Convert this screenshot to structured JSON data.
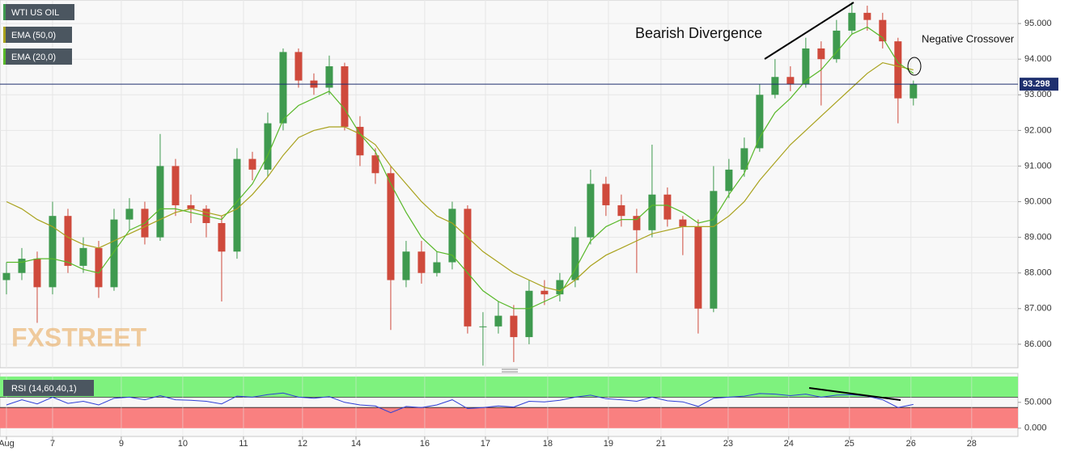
{
  "chart_data": [
    {
      "type": "candlestick",
      "instrument": "WTI US OIL",
      "x": [
        0,
        1,
        2,
        3,
        4,
        5,
        6,
        7,
        8,
        9,
        10,
        11,
        12,
        13,
        14,
        15,
        16,
        17,
        18,
        19,
        20,
        21,
        22,
        23,
        24,
        25,
        26,
        27,
        28,
        29,
        30,
        31,
        32,
        33,
        34,
        35,
        36,
        37,
        38,
        39,
        40,
        41,
        42,
        43,
        44,
        45,
        46,
        47,
        48,
        49,
        50,
        51,
        52,
        53,
        54,
        55,
        56,
        57,
        58,
        59
      ],
      "open": [
        87.8,
        88.0,
        88.4,
        87.6,
        89.6,
        88.2,
        88.7,
        87.6,
        89.5,
        89.8,
        89.0,
        91.0,
        89.9,
        89.8,
        89.4,
        88.6,
        91.2,
        90.9,
        92.2,
        94.2,
        93.4,
        93.2,
        93.8,
        92.1,
        91.3,
        90.8,
        87.8,
        88.6,
        88.0,
        88.3,
        89.8,
        86.5,
        86.5,
        86.8,
        86.2,
        87.5,
        87.4,
        87.8,
        89.0,
        90.5,
        89.9,
        89.6,
        89.2,
        90.2,
        89.5,
        89.3,
        87.0,
        90.3,
        90.9,
        91.5,
        93.0,
        93.5,
        93.3,
        94.3,
        94.0,
        94.8,
        95.3,
        95.1,
        94.5,
        92.9
      ],
      "high": [
        88.3,
        88.7,
        88.6,
        90.0,
        89.8,
        89.0,
        88.9,
        89.8,
        90.1,
        90.0,
        91.9,
        91.2,
        90.2,
        89.9,
        89.6,
        91.5,
        91.4,
        92.5,
        94.3,
        94.3,
        93.6,
        94.1,
        93.9,
        92.4,
        91.5,
        91.0,
        88.9,
        88.9,
        88.6,
        90.0,
        89.9,
        86.9,
        87.2,
        87.1,
        87.8,
        87.8,
        88.0,
        89.3,
        90.9,
        90.7,
        90.2,
        89.8,
        91.6,
        90.4,
        89.6,
        89.5,
        91.0,
        91.2,
        91.8,
        93.3,
        94.0,
        93.8,
        94.6,
        94.5,
        95.1,
        95.6,
        95.5,
        95.3,
        94.6,
        93.4
      ],
      "low": [
        87.4,
        87.8,
        86.6,
        87.4,
        88.0,
        88.0,
        87.3,
        87.5,
        89.2,
        88.8,
        88.9,
        89.6,
        89.4,
        89.0,
        87.2,
        88.4,
        90.6,
        90.7,
        92.0,
        93.2,
        93.0,
        93.0,
        92.0,
        91.0,
        90.5,
        86.4,
        87.6,
        87.7,
        87.9,
        88.1,
        86.3,
        85.4,
        86.3,
        85.5,
        86.0,
        87.1,
        87.2,
        87.6,
        88.8,
        89.6,
        89.3,
        88.0,
        89.0,
        89.3,
        88.5,
        86.3,
        86.9,
        90.1,
        90.7,
        91.4,
        92.9,
        93.1,
        93.2,
        92.7,
        93.9,
        94.7,
        94.8,
        94.3,
        92.2,
        92.7
      ],
      "close": [
        88.0,
        88.4,
        87.6,
        89.6,
        88.2,
        88.7,
        87.6,
        89.5,
        89.8,
        89.0,
        91.0,
        89.9,
        89.8,
        89.4,
        88.6,
        91.2,
        90.9,
        92.2,
        94.2,
        93.4,
        93.2,
        93.8,
        92.1,
        91.3,
        90.8,
        87.8,
        88.6,
        88.0,
        88.3,
        89.8,
        86.5,
        86.5,
        86.8,
        86.2,
        87.5,
        87.4,
        87.8,
        89.0,
        90.5,
        89.9,
        89.6,
        89.2,
        90.2,
        89.5,
        89.3,
        87.0,
        90.3,
        90.9,
        91.5,
        93.0,
        93.5,
        93.3,
        94.3,
        94.0,
        94.8,
        95.3,
        95.1,
        94.5,
        92.9,
        93.3
      ],
      "up_color": "#3f9a4f",
      "down_color": "#cf4a3c",
      "series": [
        {
          "name": "EMA (50,0)",
          "color": "#a9a21d",
          "values": [
            90.0,
            89.8,
            89.5,
            89.3,
            89.0,
            88.8,
            88.7,
            88.9,
            89.1,
            89.3,
            89.5,
            89.7,
            89.8,
            89.7,
            89.6,
            89.8,
            90.2,
            90.7,
            91.3,
            91.8,
            92.0,
            92.1,
            92.1,
            91.9,
            91.6,
            91.0,
            90.5,
            90.0,
            89.6,
            89.4,
            89.0,
            88.6,
            88.3,
            88.0,
            87.8,
            87.6,
            87.5,
            87.8,
            88.2,
            88.5,
            88.7,
            88.9,
            89.1,
            89.2,
            89.3,
            89.3,
            89.3,
            89.6,
            90.0,
            90.6,
            91.1,
            91.6,
            92.0,
            92.4,
            92.8,
            93.2,
            93.6,
            93.9,
            93.8,
            93.7
          ]
        },
        {
          "name": "EMA (20,0)",
          "color": "#58b829",
          "values": [
            88.3,
            88.3,
            88.4,
            88.4,
            88.3,
            88.1,
            88.0,
            88.6,
            89.2,
            89.4,
            89.8,
            89.8,
            89.7,
            89.6,
            89.5,
            90.0,
            90.5,
            91.3,
            92.3,
            92.7,
            92.9,
            93.1,
            92.6,
            91.9,
            91.4,
            90.5,
            89.7,
            89.0,
            88.6,
            88.5,
            88.0,
            87.5,
            87.2,
            87.0,
            87.0,
            87.2,
            87.4,
            88.1,
            88.9,
            89.3,
            89.5,
            89.5,
            89.9,
            89.9,
            89.7,
            89.4,
            89.5,
            90.2,
            90.8,
            91.8,
            92.5,
            92.9,
            93.4,
            93.7,
            94.2,
            94.7,
            94.9,
            94.6,
            93.9,
            93.6
          ]
        }
      ],
      "last_price": {
        "value": 93.298,
        "label": "93.298"
      },
      "xlim": [
        -0.42,
        65.8
      ],
      "ylim": [
        85.34,
        95.66
      ],
      "yticks": [
        {
          "value": 86,
          "label": "86.000"
        },
        {
          "value": 87,
          "label": "87.000"
        },
        {
          "value": 88,
          "label": "88.000"
        },
        {
          "value": 89,
          "label": "89.000"
        },
        {
          "value": 90,
          "label": "90.000"
        },
        {
          "value": 91,
          "label": "91.000"
        },
        {
          "value": 92,
          "label": "92.000"
        },
        {
          "value": 93,
          "label": "93.000"
        },
        {
          "value": 94,
          "label": "94.000"
        },
        {
          "value": 95,
          "label": "95.000"
        }
      ],
      "xticks": [
        {
          "value": 0,
          "label": "Aug"
        },
        {
          "value": 3,
          "label": "7"
        },
        {
          "value": 7.47,
          "label": "9"
        },
        {
          "value": 11.47,
          "label": "10"
        },
        {
          "value": 15.42,
          "label": "11"
        },
        {
          "value": 19.26,
          "label": "12"
        },
        {
          "value": 22.74,
          "label": "14"
        },
        {
          "value": 27.21,
          "label": "16"
        },
        {
          "value": 31.16,
          "label": "17"
        },
        {
          "value": 35.21,
          "label": "18"
        },
        {
          "value": 39.16,
          "label": "19"
        },
        {
          "value": 42.58,
          "label": "21"
        },
        {
          "value": 46.95,
          "label": "23"
        },
        {
          "value": 50.89,
          "label": "24"
        },
        {
          "value": 54.84,
          "label": "25"
        },
        {
          "value": 58.84,
          "label": "26"
        },
        {
          "value": 62.79,
          "label": "28"
        }
      ],
      "grid": true,
      "annotations": [
        "Bearish Divergence",
        "Negative Crossover"
      ],
      "watermark": "FXSTREET"
    },
    {
      "type": "line",
      "title": "RSI (14,60,40,1)",
      "series": [
        {
          "name": "RSI",
          "color": "#2f3fd6",
          "values": [
            45,
            55,
            47,
            60,
            48,
            52,
            45,
            58,
            60,
            55,
            63,
            55,
            54,
            52,
            47,
            62,
            60,
            65,
            68,
            60,
            58,
            61,
            50,
            45,
            43,
            30,
            42,
            40,
            45,
            55,
            38,
            40,
            43,
            41,
            52,
            51,
            54,
            60,
            64,
            57,
            55,
            52,
            60,
            53,
            51,
            42,
            58,
            60,
            62,
            67,
            66,
            63,
            66,
            60,
            64,
            65,
            62,
            55,
            40,
            46
          ]
        }
      ],
      "bands": [
        {
          "from": 60,
          "to": 100,
          "color": "#7ef27e"
        },
        {
          "from": 0,
          "to": 40,
          "color": "#f98080"
        }
      ],
      "ylim": [
        -16,
        106
      ],
      "yticks": [
        {
          "value": 0,
          "label": "0.000"
        },
        {
          "value": 50,
          "label": "50.000"
        }
      ]
    }
  ]
}
